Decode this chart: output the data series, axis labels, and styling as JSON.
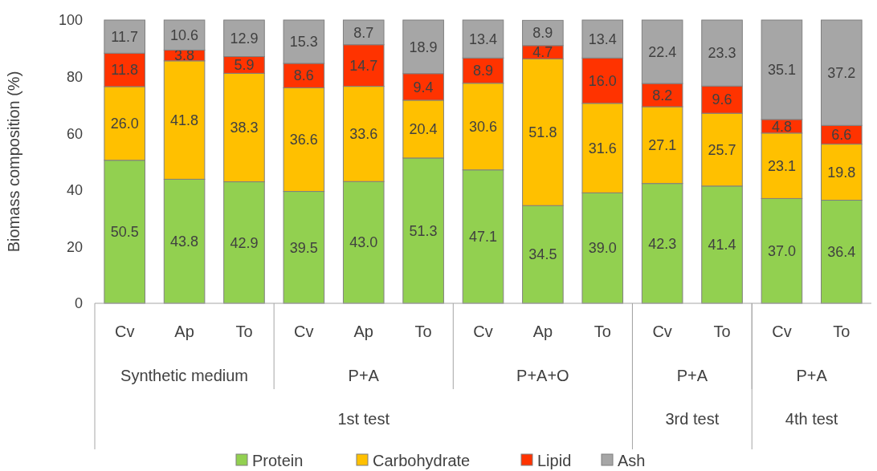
{
  "chart_data": {
    "type": "bar",
    "stacked": true,
    "ylabel": "Biomass composition (%)",
    "categories": [
      "Cv",
      "Ap",
      "To",
      "Cv",
      "Ap",
      "To",
      "Cv",
      "Ap",
      "To",
      "Cv",
      "To",
      "Cv",
      "To"
    ],
    "series": [
      {
        "name": "Protein",
        "color": "#92d050",
        "values": [
          50.5,
          43.8,
          42.9,
          39.5,
          43.0,
          51.3,
          47.1,
          34.5,
          39.0,
          42.3,
          41.4,
          37.0,
          36.4
        ],
        "value_labels": [
          "50.5",
          "43.8",
          "42.9",
          "39.5",
          "43.0",
          "51.3",
          "47.1",
          "34.5",
          "39.0",
          "42.3",
          "41.4",
          "37.0",
          "36.4"
        ]
      },
      {
        "name": "Carbohydrate",
        "color": "#ffc000",
        "values": [
          26.0,
          41.8,
          38.3,
          36.6,
          33.6,
          20.4,
          30.6,
          51.8,
          31.6,
          27.1,
          25.7,
          23.1,
          19.8
        ],
        "value_labels": [
          "26.0",
          "41.8",
          "38.3",
          "36.6",
          "33.6",
          "20.4",
          "30.6",
          "51.8",
          "31.6",
          "27.1",
          "25.7",
          "23.1",
          "19.8"
        ]
      },
      {
        "name": "Lipid",
        "color": "#ff3300",
        "values": [
          11.8,
          3.8,
          5.9,
          8.6,
          14.7,
          9.4,
          8.9,
          4.7,
          16.0,
          8.2,
          9.6,
          4.8,
          6.6
        ],
        "value_labels": [
          "11.8",
          "3.8",
          "5.9",
          "8.6",
          "14.7",
          "9.4",
          "8.9",
          "4.7",
          "16.0",
          "8.2",
          "9.6",
          "4.8",
          "6.6"
        ]
      },
      {
        "name": "Ash",
        "color": "#a6a6a6",
        "values": [
          11.7,
          10.6,
          12.9,
          15.3,
          8.7,
          18.9,
          13.4,
          8.9,
          13.4,
          22.4,
          23.3,
          35.1,
          37.2
        ],
        "value_labels": [
          "11.7",
          "10.6",
          "12.9",
          "15.3",
          "8.7",
          "18.9",
          "13.4",
          "8.9",
          "13.4",
          "22.4",
          "23.3",
          "35.1",
          "37.2"
        ]
      }
    ],
    "annotations": [
      "Synthetic medium",
      "P+A",
      "P+A+O",
      "P+A",
      "P+A",
      "1st test",
      "3rd test",
      "4th test"
    ],
    "ylim": [
      0,
      100
    ],
    "yticks": [
      0,
      20,
      40,
      60,
      80,
      100
    ],
    "grid": false,
    "legend": "bottom"
  }
}
